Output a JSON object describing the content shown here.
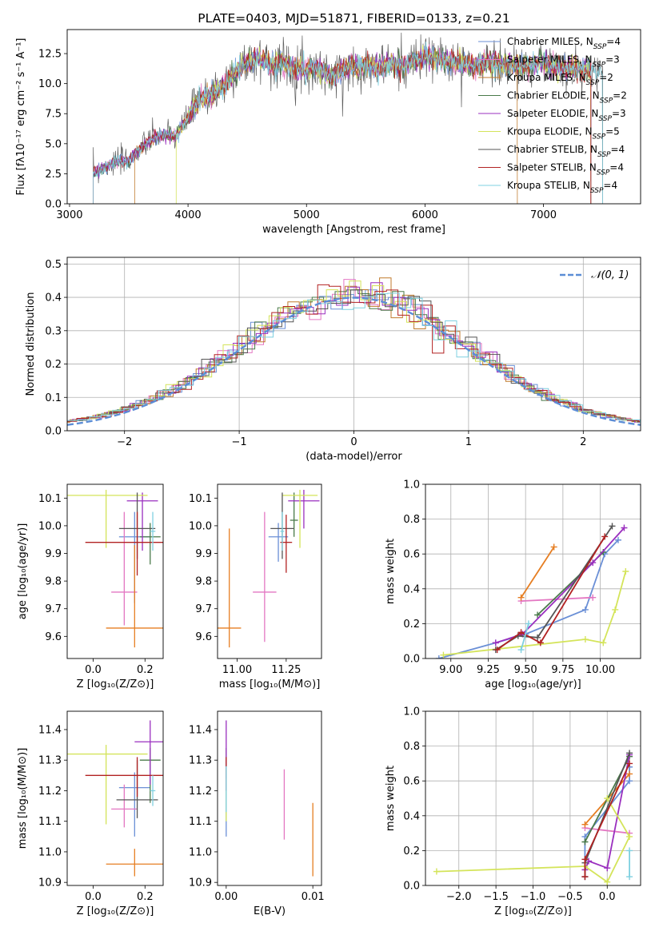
{
  "chart_data": [
    {
      "id": "spectrum",
      "type": "line",
      "title": "PLATE=0403, MJD=51871, FIBERID=0133, z=0.21",
      "xlabel": "wavelength [Angstrom, rest frame]",
      "ylabel": "Flux [fλ10⁻¹⁷ erg cm⁻² s⁻¹ A⁻¹]",
      "xlim": [
        2980,
        7820
      ],
      "ylim": [
        0,
        14.5
      ],
      "xticks": [
        3000,
        4000,
        5000,
        6000,
        7000
      ],
      "yticks": [
        0.0,
        2.5,
        5.0,
        7.5,
        10.0,
        12.5
      ],
      "x": [
        3200,
        3300,
        3400,
        3500,
        3600,
        3700,
        3800,
        3900,
        4000,
        4100,
        4200,
        4300,
        4400,
        4500,
        4600,
        4700,
        4800,
        4900,
        5000,
        5100,
        5200,
        5300,
        5400,
        5500,
        5600,
        5700,
        5800,
        5900,
        6000,
        6100,
        6200,
        6300,
        6400,
        6500,
        6600,
        6700,
        6800,
        6900,
        7000,
        7100,
        7200,
        7300,
        7400,
        7500
      ],
      "flux": [
        2.6,
        3.1,
        3.5,
        3.6,
        4.6,
        5.4,
        5.8,
        5.6,
        7.2,
        8.6,
        9.1,
        9.8,
        11.0,
        11.8,
        12.1,
        11.6,
        11.7,
        11.3,
        11.2,
        11.4,
        10.5,
        11.1,
        11.4,
        11.5,
        11.3,
        11.6,
        11.4,
        11.8,
        12.2,
        12.1,
        11.9,
        11.7,
        11.5,
        11.6,
        11.8,
        11.5,
        11.4,
        11.6,
        11.7,
        11.4,
        11.2,
        11.3,
        11.1,
        11.0
      ],
      "legend_position": "right",
      "series": [
        {
          "name": "Chabrier MILES, N_SSP=4",
          "n_ssp": "4",
          "color": "#6a8fd6"
        },
        {
          "name": "Salpeter MILES, N_SSP=3",
          "n_ssp": "3",
          "color": "#e377c2"
        },
        {
          "name": "Kroupa MILES, N_SSP=2",
          "n_ssp": "2",
          "color": "#c07a2c"
        },
        {
          "name": "Chabrier ELODIE, N_SSP=2",
          "n_ssp": "2",
          "color": "#4a7a4a"
        },
        {
          "name": "Salpeter ELODIE, N_SSP=3",
          "n_ssp": "3",
          "color": "#9a2fbf"
        },
        {
          "name": "Kroupa ELODIE, N_SSP=5",
          "n_ssp": "5",
          "color": "#d4e45a"
        },
        {
          "name": "Chabrier STELIB, N_SSP=4",
          "n_ssp": "4",
          "color": "#555555"
        },
        {
          "name": "Salpeter STELIB, N_SSP=4",
          "n_ssp": "4",
          "color": "#b22222"
        },
        {
          "name": "Kroupa STELIB, N_SSP=4",
          "n_ssp": "4",
          "color": "#7fd0e0"
        }
      ]
    },
    {
      "id": "residuals",
      "type": "histogram",
      "xlabel": "(data-model)/error",
      "ylabel": "Normed distribution",
      "xlim": [
        -2.5,
        2.5
      ],
      "ylim": [
        0,
        0.52
      ],
      "xticks": [
        -2,
        -1,
        0,
        1,
        2
      ],
      "yticks": [
        0.0,
        0.1,
        0.2,
        0.3,
        0.4,
        0.5
      ],
      "legend": "𝒩(0, 1)",
      "legend_position": "upper right",
      "grid": true,
      "bin_width": 0.1,
      "curve_color": "#5b8dd6"
    },
    {
      "id": "age-vs-Z",
      "type": "errorbar",
      "xlabel": "Z [log₁₀(Z/Z⊙)]",
      "ylabel": "age  [log₁₀(age/yr)]",
      "xlim": [
        -0.1,
        0.27
      ],
      "ylim": [
        9.52,
        10.15
      ],
      "xticks": [
        0.0,
        0.2
      ],
      "yticks": [
        9.6,
        9.7,
        9.8,
        9.9,
        10.0,
        10.1
      ],
      "points": [
        {
          "x": 0.16,
          "y": 9.96,
          "xerr": 0.06,
          "yerr_lo": 0.24,
          "yerr_hi": 0.09,
          "color": "#6a8fd6"
        },
        {
          "x": 0.12,
          "y": 9.76,
          "xerr": 0.05,
          "yerr_lo": 0.12,
          "yerr_hi": 0.29,
          "color": "#e377c2"
        },
        {
          "x": 0.16,
          "y": 9.63,
          "xerr": 0.11,
          "yerr_lo": 0.07,
          "yerr_hi": 0.3,
          "color": "#e67e22"
        },
        {
          "x": 0.22,
          "y": 9.96,
          "xerr": 0.04,
          "yerr_lo": 0.1,
          "yerr_hi": 0.05,
          "color": "#4a7a4a"
        },
        {
          "x": 0.19,
          "y": 10.09,
          "xerr": 0.06,
          "yerr_lo": 0.18,
          "yerr_hi": 0.03,
          "color": "#9a2fbf"
        },
        {
          "x": 0.05,
          "y": 10.11,
          "xerr": 0.16,
          "yerr_lo": 0.19,
          "yerr_hi": 0.02,
          "color": "#d4e45a"
        },
        {
          "x": 0.17,
          "y": 9.99,
          "xerr": 0.07,
          "yerr_lo": 0.11,
          "yerr_hi": 0.13,
          "color": "#555555"
        },
        {
          "x": 0.17,
          "y": 9.94,
          "xerr": 0.2,
          "yerr_lo": 0.12,
          "yerr_hi": 0.11,
          "color": "#b22222"
        },
        {
          "x": 0.23,
          "y": 9.98,
          "xerr": 0.01,
          "yerr_lo": 0.07,
          "yerr_hi": 0.07,
          "color": "#7fd0e0"
        }
      ]
    },
    {
      "id": "age-vs-mass",
      "type": "errorbar",
      "xlabel": "mass [log₁₀(M/M⊙)]",
      "ylabel": "",
      "xlim": [
        10.9,
        11.43
      ],
      "ylim": [
        9.52,
        10.15
      ],
      "xticks": [
        11.0,
        11.25
      ],
      "yticks": [
        9.6,
        9.7,
        9.8,
        9.9,
        10.0,
        10.1
      ],
      "points": [
        {
          "x": 11.21,
          "y": 9.96,
          "xerr": 0.05,
          "yerr_lo": 0.09,
          "yerr_hi": 0.05,
          "color": "#6a8fd6"
        },
        {
          "x": 11.14,
          "y": 9.76,
          "xerr": 0.06,
          "yerr_lo": 0.18,
          "yerr_hi": 0.29,
          "color": "#e377c2"
        },
        {
          "x": 10.96,
          "y": 9.63,
          "xerr": 0.06,
          "yerr_lo": 0.07,
          "yerr_hi": 0.36,
          "color": "#e67e22"
        },
        {
          "x": 11.29,
          "y": 10.02,
          "xerr": 0.02,
          "yerr_lo": 0.06,
          "yerr_hi": 0.1,
          "color": "#4a7a4a"
        },
        {
          "x": 11.34,
          "y": 10.09,
          "xerr": 0.08,
          "yerr_lo": 0.1,
          "yerr_hi": 0.04,
          "color": "#9a2fbf"
        },
        {
          "x": 11.32,
          "y": 10.11,
          "xerr": 0.09,
          "yerr_lo": 0.19,
          "yerr_hi": 0.02,
          "color": "#d4e45a"
        },
        {
          "x": 11.23,
          "y": 9.99,
          "xerr": 0.06,
          "yerr_lo": 0.11,
          "yerr_hi": 0.13,
          "color": "#555555"
        },
        {
          "x": 11.25,
          "y": 9.94,
          "xerr": 0.03,
          "yerr_lo": 0.11,
          "yerr_hi": 0.1,
          "color": "#b22222"
        },
        {
          "x": 11.23,
          "y": 9.98,
          "xerr": 0.01,
          "yerr_lo": 0.07,
          "yerr_hi": 0.07,
          "color": "#7fd0e0"
        }
      ]
    },
    {
      "id": "weight-vs-age",
      "type": "line",
      "xlabel": "age  [log₁₀(age/yr)]",
      "ylabel": "mass weight",
      "xlim": [
        8.83,
        10.27
      ],
      "ylim": [
        0,
        1.0
      ],
      "xticks": [
        9.0,
        9.25,
        9.5,
        9.75,
        10.0
      ],
      "yticks": [
        0.0,
        0.2,
        0.4,
        0.6,
        0.8,
        1.0
      ],
      "grid": true,
      "series": [
        {
          "color": "#6a8fd6",
          "x": [
            8.92,
            9.3,
            9.5,
            9.9,
            10.03,
            10.12
          ],
          "y": [
            0.0,
            0.09,
            0.14,
            0.28,
            0.6,
            0.68
          ]
        },
        {
          "color": "#e377c2",
          "x": [
            9.47,
            9.95
          ],
          "y": [
            0.33,
            0.35
          ]
        },
        {
          "color": "#e67e22",
          "x": [
            9.47,
            9.69
          ],
          "y": [
            0.35,
            0.64
          ]
        },
        {
          "color": "#4a7a4a",
          "x": [
            9.58,
            10.02
          ],
          "y": [
            0.25,
            0.61
          ]
        },
        {
          "color": "#9a2fbf",
          "x": [
            9.3,
            9.48,
            9.95,
            10.16
          ],
          "y": [
            0.09,
            0.14,
            0.55,
            0.75
          ]
        },
        {
          "color": "#d4e45a",
          "x": [
            8.95,
            9.9,
            10.02,
            10.1,
            10.17
          ],
          "y": [
            0.02,
            0.11,
            0.09,
            0.28,
            0.5
          ]
        },
        {
          "color": "#555555",
          "x": [
            9.3,
            9.45,
            9.58,
            10.08
          ],
          "y": [
            0.05,
            0.13,
            0.12,
            0.76
          ]
        },
        {
          "color": "#b22222",
          "x": [
            9.31,
            9.47,
            9.6,
            10.03
          ],
          "y": [
            0.05,
            0.15,
            0.09,
            0.7
          ]
        },
        {
          "color": "#7fd0e0",
          "x": [
            9.47,
            9.52
          ],
          "y": [
            0.05,
            0.2
          ]
        }
      ]
    },
    {
      "id": "mass-vs-Z",
      "type": "errorbar",
      "xlabel": "Z [log₁₀(Z/Z⊙)]",
      "ylabel": "mass [log₁₀(M/M⊙)]",
      "xlim": [
        -0.1,
        0.27
      ],
      "ylim": [
        10.89,
        11.46
      ],
      "xticks": [
        0.0,
        0.2
      ],
      "yticks": [
        10.9,
        11.0,
        11.1,
        11.2,
        11.3,
        11.4
      ],
      "points": [
        {
          "x": 0.16,
          "y": 11.21,
          "xerr": 0.06,
          "yerr_lo": 0.16,
          "yerr_hi": 0.05,
          "color": "#6a8fd6"
        },
        {
          "x": 0.12,
          "y": 11.14,
          "xerr": 0.05,
          "yerr_lo": 0.06,
          "yerr_hi": 0.08,
          "color": "#e377c2"
        },
        {
          "x": 0.16,
          "y": 10.96,
          "xerr": 0.11,
          "yerr_lo": 0.04,
          "yerr_hi": 0.05,
          "color": "#e67e22"
        },
        {
          "x": 0.22,
          "y": 11.3,
          "xerr": 0.04,
          "yerr_lo": 0.14,
          "yerr_hi": 0.04,
          "color": "#4a7a4a"
        },
        {
          "x": 0.22,
          "y": 11.36,
          "xerr": 0.06,
          "yerr_lo": 0.14,
          "yerr_hi": 0.07,
          "color": "#9a2fbf"
        },
        {
          "x": 0.05,
          "y": 11.32,
          "xerr": 0.16,
          "yerr_lo": 0.23,
          "yerr_hi": 0.03,
          "color": "#d4e45a"
        },
        {
          "x": 0.17,
          "y": 11.17,
          "xerr": 0.08,
          "yerr_lo": 0.06,
          "yerr_hi": 0.13,
          "color": "#555555"
        },
        {
          "x": 0.17,
          "y": 11.25,
          "xerr": 0.2,
          "yerr_lo": 0.07,
          "yerr_hi": 0.06,
          "color": "#b22222"
        },
        {
          "x": 0.23,
          "y": 11.2,
          "xerr": 0.01,
          "yerr_lo": 0.05,
          "yerr_hi": 0.05,
          "color": "#7fd0e0"
        }
      ]
    },
    {
      "id": "mass-vs-EBV",
      "type": "errorbar",
      "xlabel": "E(B-V)",
      "ylabel": "",
      "xlim": [
        -0.001,
        0.011
      ],
      "ylim": [
        10.89,
        11.46
      ],
      "xticks": [
        0.0,
        0.01
      ],
      "yticks": [
        10.9,
        11.0,
        11.1,
        11.2,
        11.3,
        11.4
      ],
      "points": [
        {
          "x": 0.0,
          "y": 11.21,
          "xerr": 0.0,
          "yerr_lo": 0.16,
          "yerr_hi": 0.05,
          "color": "#6a8fd6"
        },
        {
          "x": 0.0067,
          "y": 11.14,
          "xerr": 0.0,
          "yerr_lo": 0.1,
          "yerr_hi": 0.13,
          "color": "#e377c2"
        },
        {
          "x": 0.01,
          "y": 11.0,
          "xerr": 0.0,
          "yerr_lo": 0.08,
          "yerr_hi": 0.16,
          "color": "#e67e22"
        },
        {
          "x": 0.0,
          "y": 11.3,
          "xerr": 0.0,
          "yerr_lo": 0.04,
          "yerr_hi": 0.04,
          "color": "#4a7a4a"
        },
        {
          "x": 0.0,
          "y": 11.36,
          "xerr": 0.0,
          "yerr_lo": 0.12,
          "yerr_hi": 0.07,
          "color": "#9a2fbf"
        },
        {
          "x": 0.0,
          "y": 11.15,
          "xerr": 0.0,
          "yerr_lo": 0.05,
          "yerr_hi": 0.05,
          "color": "#d4e45a"
        },
        {
          "x": 0.0,
          "y": 11.25,
          "xerr": 0.0,
          "yerr_lo": 0.05,
          "yerr_hi": 0.06,
          "color": "#b22222"
        },
        {
          "x": 0.0,
          "y": 11.2,
          "xerr": 0.0,
          "yerr_lo": 0.07,
          "yerr_hi": 0.08,
          "color": "#7fd0e0"
        }
      ]
    },
    {
      "id": "weight-vs-Z",
      "type": "line",
      "xlabel": "Z [log₁₀(Z/Z⊙)]",
      "ylabel": "mass weight",
      "xlim": [
        -2.45,
        0.45
      ],
      "ylim": [
        0,
        1.0
      ],
      "xticks": [
        -2.0,
        -1.5,
        -1.0,
        -0.5,
        0.0
      ],
      "yticks": [
        0.0,
        0.2,
        0.4,
        0.6,
        0.8,
        1.0
      ],
      "grid": true,
      "series": [
        {
          "color": "#6a8fd6",
          "x": [
            -0.3,
            -0.3,
            0.3,
            0.3
          ],
          "y": [
            0.05,
            0.28,
            0.6,
            0.68
          ]
        },
        {
          "color": "#e377c2",
          "x": [
            -0.3,
            0.3
          ],
          "y": [
            0.33,
            0.3
          ]
        },
        {
          "color": "#e67e22",
          "x": [
            -0.3,
            0.3
          ],
          "y": [
            0.35,
            0.64
          ]
        },
        {
          "color": "#4a7a4a",
          "x": [
            -0.3,
            0.3
          ],
          "y": [
            0.25,
            0.74
          ]
        },
        {
          "color": "#9a2fbf",
          "x": [
            -0.3,
            -0.25,
            0.0,
            0.3
          ],
          "y": [
            0.09,
            0.14,
            0.1,
            0.75
          ]
        },
        {
          "color": "#d4e45a",
          "x": [
            -2.3,
            -0.3,
            0.0,
            0.3,
            0.0
          ],
          "y": [
            0.08,
            0.11,
            0.02,
            0.28,
            0.5
          ]
        },
        {
          "color": "#555555",
          "x": [
            -0.3,
            -0.3,
            0.3
          ],
          "y": [
            0.05,
            0.13,
            0.76
          ]
        },
        {
          "color": "#b22222",
          "x": [
            -0.3,
            -0.3,
            0.3
          ],
          "y": [
            0.05,
            0.15,
            0.7
          ]
        },
        {
          "color": "#7fd0e0",
          "x": [
            0.3,
            0.3
          ],
          "y": [
            0.05,
            0.2
          ]
        }
      ]
    }
  ]
}
